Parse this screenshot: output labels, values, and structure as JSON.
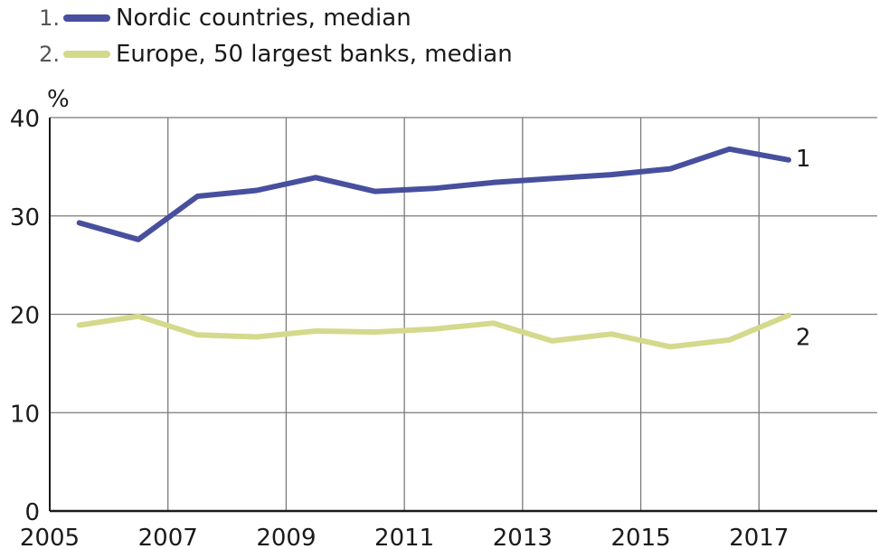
{
  "chart_data": {
    "type": "line",
    "title": "",
    "xlabel": "",
    "ylabel": "%",
    "xlim": [
      2005,
      2019
    ],
    "ylim": [
      0,
      40
    ],
    "x_ticks": [
      "2005",
      "2007",
      "2009",
      "2011",
      "2013",
      "2015",
      "2017"
    ],
    "y_ticks": [
      "0",
      "10",
      "20",
      "30",
      "40"
    ],
    "grid": true,
    "legend_position": "top-left",
    "series": [
      {
        "name": "Nordic countries, median",
        "legend_number": "1.",
        "end_label": "1",
        "color": "#474f9e",
        "x": [
          2005.5,
          2006.5,
          2007.5,
          2008.5,
          2009.5,
          2010.5,
          2011.5,
          2012.5,
          2013.5,
          2014.5,
          2015.5,
          2016.5,
          2017.5
        ],
        "y": [
          29.3,
          27.6,
          32.0,
          32.6,
          33.9,
          32.5,
          32.8,
          33.4,
          33.8,
          34.2,
          34.8,
          36.8,
          35.7
        ]
      },
      {
        "name": "Europe, 50 largest banks, median",
        "legend_number": "2.",
        "end_label": "2",
        "color": "#d4d98c",
        "x": [
          2005.5,
          2006.5,
          2007.5,
          2008.5,
          2009.5,
          2010.5,
          2011.5,
          2012.5,
          2013.5,
          2014.5,
          2015.5,
          2016.5,
          2017.5
        ],
        "y": [
          18.9,
          19.8,
          17.9,
          17.7,
          18.3,
          18.2,
          18.5,
          19.1,
          17.3,
          18.0,
          16.7,
          17.4,
          19.9
        ]
      }
    ]
  }
}
